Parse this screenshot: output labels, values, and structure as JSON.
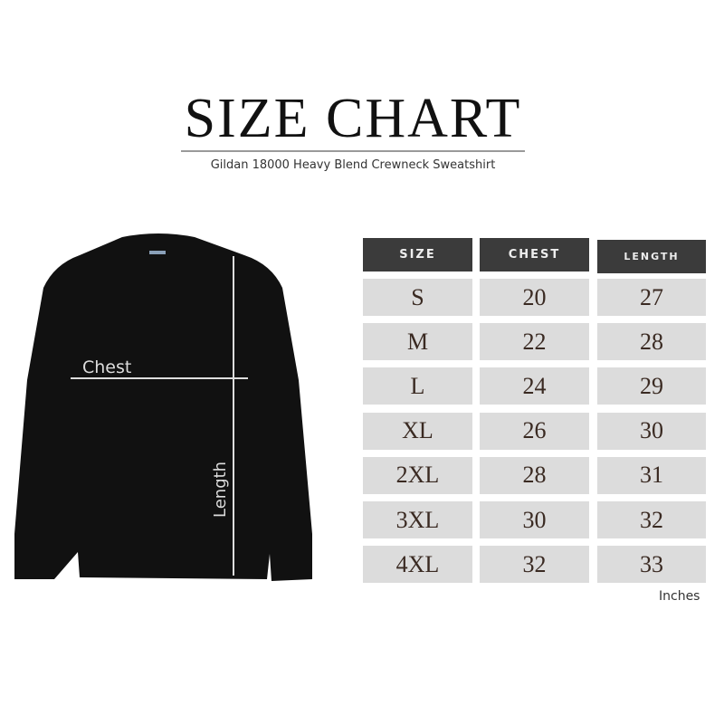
{
  "title": "SIZE CHART",
  "subtitle": "Gildan 18000 Heavy Blend Crewneck Sweatshirt",
  "diagram": {
    "chest_label": "Chest",
    "length_label": "Length"
  },
  "table": {
    "headers": [
      "SIZE",
      "CHEST",
      "LENGTH"
    ],
    "rows": [
      [
        "S",
        "20",
        "27"
      ],
      [
        "M",
        "22",
        "28"
      ],
      [
        "L",
        "24",
        "29"
      ],
      [
        "XL",
        "26",
        "30"
      ],
      [
        "2XL",
        "28",
        "31"
      ],
      [
        "3XL",
        "30",
        "32"
      ],
      [
        "4XL",
        "32",
        "33"
      ]
    ],
    "unit": "Inches"
  },
  "colors": {
    "header_bg": "#3b3b3b",
    "cell_bg": "#dcdcdc",
    "garment": "#111111"
  }
}
